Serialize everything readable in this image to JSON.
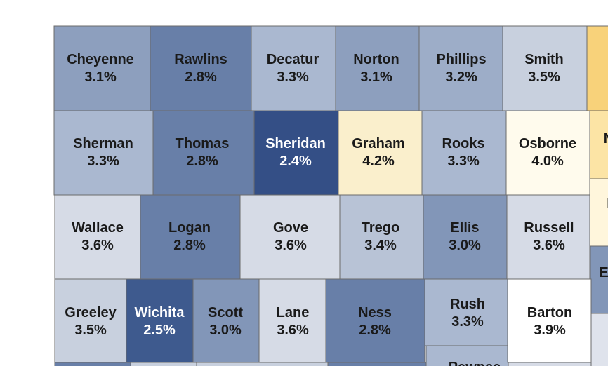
{
  "counties": [
    {
      "id": "cheyenne",
      "name": "Cheyenne",
      "value": "3.1%",
      "color": "#8d9fbe",
      "text": "dark"
    },
    {
      "id": "rawlins",
      "name": "Rawlins",
      "value": "2.8%",
      "color": "#687fa8",
      "text": "dark"
    },
    {
      "id": "decatur",
      "name": "Decatur",
      "value": "3.3%",
      "color": "#aab8d0",
      "text": "dark"
    },
    {
      "id": "norton",
      "name": "Norton",
      "value": "3.1%",
      "color": "#8d9fbe",
      "text": "dark"
    },
    {
      "id": "phillips",
      "name": "Phillips",
      "value": "3.2%",
      "color": "#9dadc8",
      "text": "dark"
    },
    {
      "id": "smith",
      "name": "Smith",
      "value": "3.5%",
      "color": "#c8d0de",
      "text": "dark"
    },
    {
      "id": "sherman",
      "name": "Sherman",
      "value": "3.3%",
      "color": "#aab8d0",
      "text": "dark"
    },
    {
      "id": "thomas",
      "name": "Thomas",
      "value": "2.8%",
      "color": "#687fa8",
      "text": "dark"
    },
    {
      "id": "sheridan",
      "name": "Sheridan",
      "value": "2.4%",
      "color": "#344f86",
      "text": "light"
    },
    {
      "id": "graham",
      "name": "Graham",
      "value": "4.2%",
      "color": "#faefcc",
      "text": "dark"
    },
    {
      "id": "rooks",
      "name": "Rooks",
      "value": "3.3%",
      "color": "#aab8d0",
      "text": "dark"
    },
    {
      "id": "osborne",
      "name": "Osborne",
      "value": "4.0%",
      "color": "#fffbed",
      "text": "dark"
    },
    {
      "id": "wallace",
      "name": "Wallace",
      "value": "3.6%",
      "color": "#d6dbe6",
      "text": "dark"
    },
    {
      "id": "logan",
      "name": "Logan",
      "value": "2.8%",
      "color": "#687fa8",
      "text": "dark"
    },
    {
      "id": "gove",
      "name": "Gove",
      "value": "3.6%",
      "color": "#d6dbe6",
      "text": "dark"
    },
    {
      "id": "trego",
      "name": "Trego",
      "value": "3.4%",
      "color": "#b8c3d6",
      "text": "dark"
    },
    {
      "id": "ellis",
      "name": "Ellis",
      "value": "3.0%",
      "color": "#8296b8",
      "text": "dark"
    },
    {
      "id": "russell",
      "name": "Russell",
      "value": "3.6%",
      "color": "#d6dbe6",
      "text": "dark"
    },
    {
      "id": "greeley",
      "name": "Greeley",
      "value": "3.5%",
      "color": "#c8d0de",
      "text": "dark"
    },
    {
      "id": "wichita",
      "name": "Wichita",
      "value": "2.5%",
      "color": "#3e5a8e",
      "text": "light"
    },
    {
      "id": "scott",
      "name": "Scott",
      "value": "3.0%",
      "color": "#8296b8",
      "text": "dark"
    },
    {
      "id": "lane",
      "name": "Lane",
      "value": "3.6%",
      "color": "#d6dbe6",
      "text": "dark"
    },
    {
      "id": "ness",
      "name": "Ness",
      "value": "2.8%",
      "color": "#687fa8",
      "text": "dark"
    },
    {
      "id": "rush",
      "name": "Rush",
      "value": "3.3%",
      "color": "#aab8d0",
      "text": "dark"
    },
    {
      "id": "barton",
      "name": "Barton",
      "value": "3.9%",
      "color": "#ffffff",
      "text": "dark"
    }
  ],
  "partial": {
    "pawnee_label": "Pawnee",
    "edge_letter_n": "N",
    "edge_letter_i": "I",
    "edge_letter_e": "E"
  },
  "edge_colors": {
    "jewell": "#f8d27a",
    "mitchell": "#fce4a5",
    "lincoln": "#fff6dc",
    "ellsworth": "#8296b8",
    "rice": "#dfe3ec",
    "bottom_row": "#687fa8",
    "bottom_light": "#c8d0de",
    "pawnee": "#aab8d0",
    "stafford": "#d6dbe6"
  }
}
